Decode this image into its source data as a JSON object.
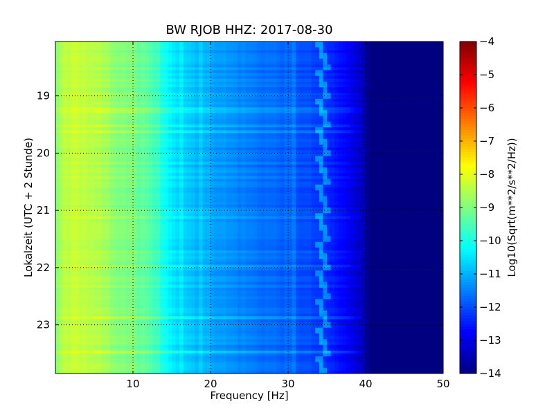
{
  "chart_data": {
    "type": "heatmap",
    "title": "BW RJOB HHZ: 2017-08-30",
    "xlabel": "Frequency [Hz]",
    "ylabel": "Lokalzeit (UTC + 2 Stunde)",
    "xlim": [
      0,
      50
    ],
    "ylim": [
      18.05,
      23.85
    ],
    "x_ticks": [
      10,
      20,
      30,
      40,
      50
    ],
    "y_ticks": [
      19,
      20,
      21,
      22,
      23
    ],
    "grid": true,
    "colormap": "jet",
    "colorbar": {
      "label": "Log10(Sqrt(m**2/s**2/Hz))",
      "range": [
        -14,
        -4
      ],
      "ticks": [
        -4,
        -5,
        -6,
        -7,
        -8,
        -9,
        -10,
        -11,
        -12,
        -13,
        -14
      ]
    },
    "spectral_profile": {
      "frequency_hz": [
        0,
        1,
        3,
        6,
        10,
        13,
        16,
        19,
        22,
        26,
        30,
        34,
        36,
        38,
        39.5,
        40.5,
        50
      ],
      "log10_psd": [
        -9.0,
        -8.4,
        -8.3,
        -8.6,
        -9.2,
        -9.9,
        -10.6,
        -11.0,
        -11.3,
        -11.6,
        -11.8,
        -12.2,
        -12.5,
        -12.9,
        -13.3,
        -14.0,
        -14.0
      ]
    },
    "persistent_lines_hz": [
      10,
      11.1,
      11.7,
      12.4,
      13.0,
      16.4,
      18.6,
      30.6
    ],
    "tonal_line_hz": 34.5
  },
  "colors": {
    "gridline": "#000000",
    "background": "#ffffff"
  }
}
